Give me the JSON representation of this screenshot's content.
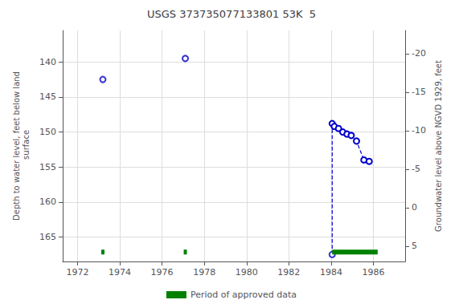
{
  "chart_data": {
    "type": "scatter",
    "title": "USGS 373735077133801 53K  5",
    "y_label": "Depth to water level, feet below land\n surface",
    "y2_label": "Groundwater level above NGVD 1929, feet",
    "xlim": [
      1971.3,
      1987.5
    ],
    "xticks": [
      1972,
      1974,
      1976,
      1978,
      1980,
      1982,
      1984,
      1986
    ],
    "ylim": [
      168.5,
      135.5
    ],
    "yticks": [
      140,
      145,
      150,
      155,
      160,
      165
    ],
    "y2lim": [
      7.0,
      -23.0
    ],
    "y2ticks": [
      5,
      0,
      -5,
      -10,
      -15,
      -20
    ],
    "grid": true,
    "legend": "bottom",
    "series": [
      {
        "type": "scatter",
        "marker": "hollow_circle",
        "color": "#0000cc",
        "x": [
          1973.2,
          1977.1
        ],
        "values": [
          142.5,
          139.5
        ]
      },
      {
        "type": "line",
        "marker": "hollow_circle",
        "line_style": "dashed",
        "color": "#0000cc",
        "x": [
          1984.05,
          1984.15,
          1984.35,
          1984.55,
          1984.75,
          1984.95,
          1985.2,
          1985.55,
          1985.8
        ],
        "values": [
          148.8,
          149.2,
          149.5,
          150.0,
          150.3,
          150.5,
          151.3,
          154.0,
          154.2
        ]
      },
      {
        "type": "line",
        "line_style": "dashed",
        "color": "#0000cc",
        "x": [
          1984.05,
          1984.05
        ],
        "values": [
          148.8,
          167.5
        ]
      },
      {
        "type": "scatter",
        "marker": "hollow_circle",
        "color": "#0000cc",
        "x": [
          1984.05
        ],
        "values": [
          167.5
        ]
      },
      {
        "type": "band",
        "name": "Period of approved data",
        "color": "#008000",
        "start": [
          1973.125,
          1977.025,
          1984.05
        ],
        "end": [
          1973.275,
          1977.175,
          1986.2
        ],
        "y_from": 167.5,
        "y_to": 166.8
      }
    ]
  }
}
